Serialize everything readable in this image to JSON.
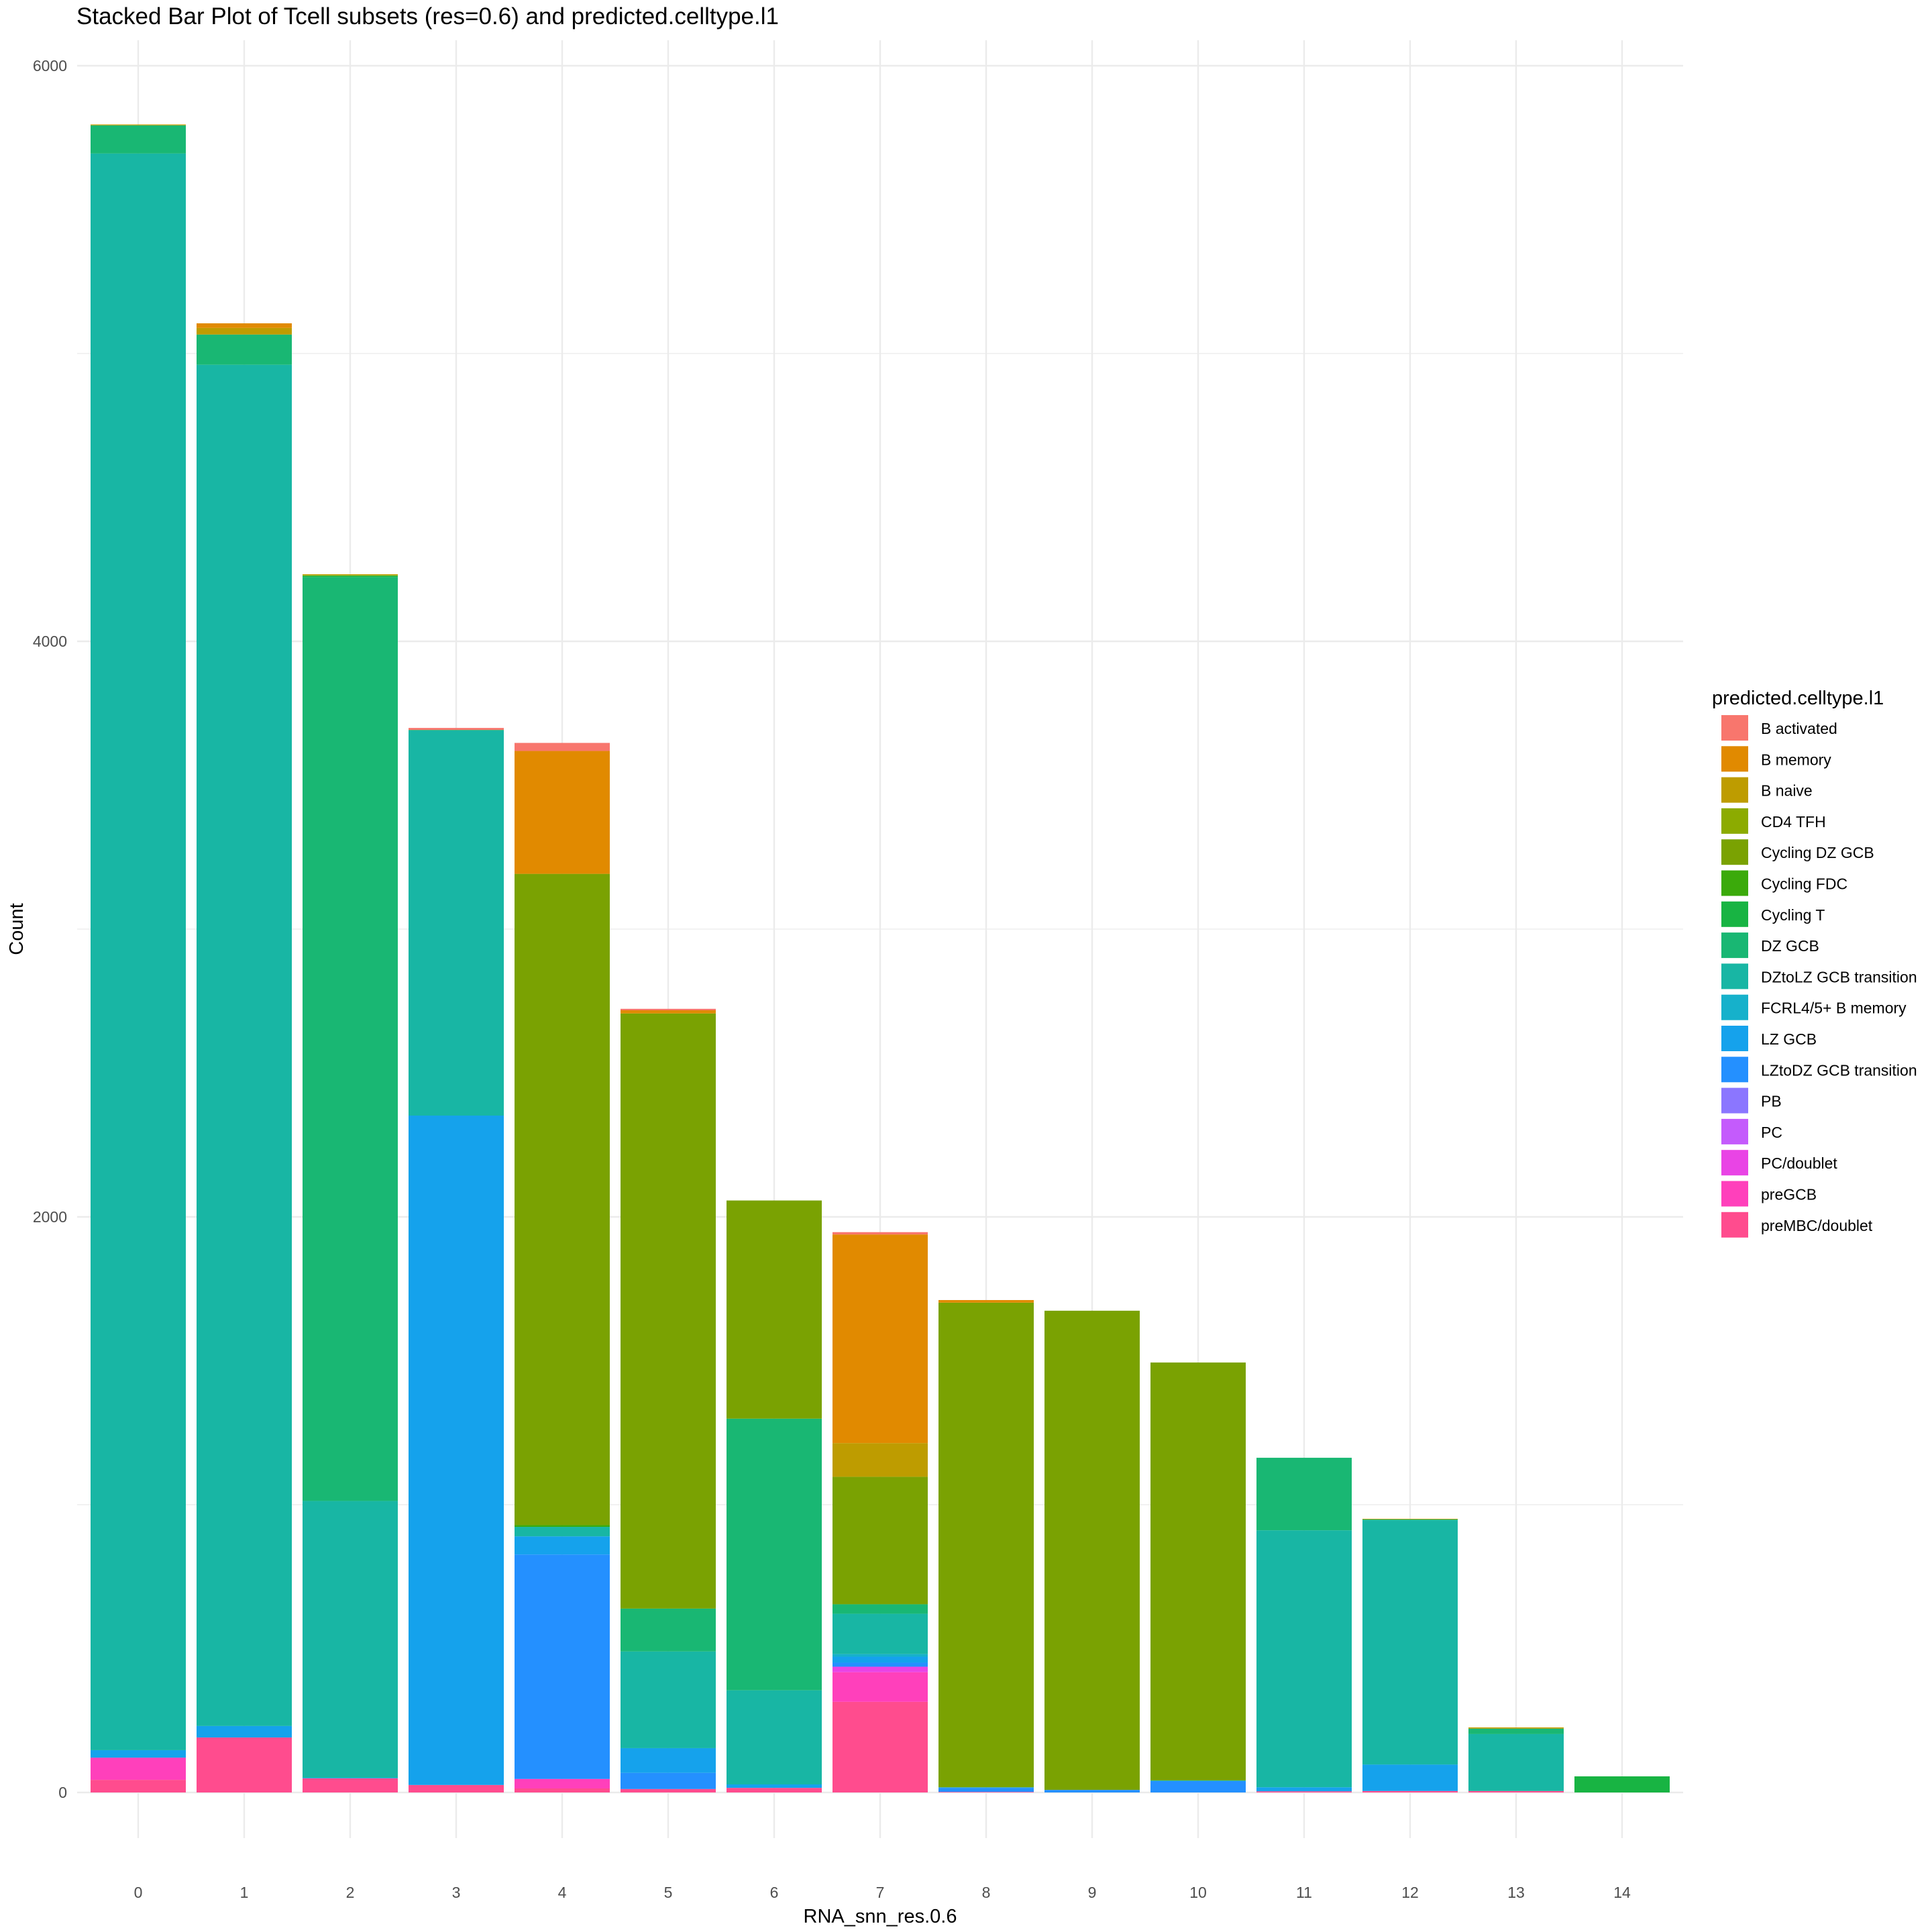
{
  "chart_data": {
    "type": "bar",
    "stacked": true,
    "title": "Stacked Bar Plot of Tcell subsets (res=0.6) and predicted.celltype.l1",
    "xlabel": "RNA_snn_res.0.6",
    "ylabel": "Count",
    "ylim": [
      0,
      6000
    ],
    "yticks": [
      "0",
      "2000",
      "4000",
      "6000"
    ],
    "grid": true,
    "legend_title": "predicted.celltype.l1",
    "legend_position": "right",
    "categories": [
      "0",
      "1",
      "2",
      "3",
      "4",
      "5",
      "6",
      "7",
      "8",
      "9",
      "10",
      "11",
      "12",
      "13",
      "14"
    ],
    "series": [
      {
        "name": "B activated",
        "color": "#F8766D",
        "values": [
          0,
          0,
          0,
          7,
          28,
          5,
          0,
          8,
          0,
          0,
          0,
          0,
          0,
          0,
          0
        ]
      },
      {
        "name": "B memory",
        "color": "#E18A00",
        "values": [
          0,
          16,
          0,
          0,
          427,
          11,
          0,
          725,
          9,
          0,
          0,
          0,
          0,
          0,
          0
        ]
      },
      {
        "name": "B naive",
        "color": "#BE9C00",
        "values": [
          3,
          23,
          3,
          0,
          0,
          0,
          0,
          117,
          0,
          0,
          0,
          0,
          2,
          4,
          0
        ]
      },
      {
        "name": "CD4 TFH",
        "color": "#8CAB00",
        "values": [
          0,
          0,
          2,
          0,
          0,
          0,
          0,
          0,
          0,
          0,
          0,
          0,
          0,
          0,
          0
        ]
      },
      {
        "name": "Cycling DZ GCB",
        "color": "#7AA202",
        "values": [
          0,
          0,
          0,
          0,
          2263,
          2068,
          758,
          443,
          1684,
          1665,
          1452,
          0,
          0,
          0,
          0
        ]
      },
      {
        "name": "Cycling FDC",
        "color": "#3BAA0B",
        "values": [
          0,
          0,
          0,
          0,
          6,
          0,
          0,
          0,
          0,
          0,
          0,
          0,
          0,
          0,
          0
        ]
      },
      {
        "name": "Cycling T",
        "color": "#18B443",
        "values": [
          0,
          0,
          5,
          0,
          0,
          0,
          0,
          0,
          0,
          0,
          0,
          0,
          0,
          0,
          56
        ]
      },
      {
        "name": "DZ GCB",
        "color": "#19B773",
        "values": [
          98,
          105,
          3210,
          2,
          0,
          149,
          944,
          33,
          0,
          0,
          0,
          252,
          3,
          19,
          0
        ]
      },
      {
        "name": "DZtoLZ GCB transition",
        "color": "#18B6A4",
        "values": [
          5548,
          4730,
          962,
          1338,
          33,
          336,
          327,
          140,
          0,
          0,
          2,
          893,
          849,
          198,
          0
        ]
      },
      {
        "name": "FCRL4/5+ B memory",
        "color": "#16B1CB",
        "values": [
          0,
          0,
          0,
          0,
          0,
          0,
          0,
          9,
          0,
          0,
          0,
          0,
          0,
          0,
          0
        ]
      },
      {
        "name": "LZ GCB",
        "color": "#15A2EC",
        "values": [
          26,
          40,
          2,
          2326,
          63,
          86,
          12,
          21,
          2,
          0,
          0,
          14,
          92,
          0,
          0
        ]
      },
      {
        "name": "LZtoDZ GCB transition",
        "color": "#2490FF",
        "values": [
          0,
          0,
          0,
          0,
          780,
          56,
          0,
          14,
          14,
          9,
          40,
          0,
          0,
          0,
          0
        ]
      },
      {
        "name": "PB",
        "color": "#8B76FF",
        "values": [
          0,
          0,
          0,
          0,
          0,
          0,
          0,
          0,
          0,
          0,
          0,
          0,
          0,
          0,
          0
        ]
      },
      {
        "name": "PC",
        "color": "#C45BFC",
        "values": [
          0,
          0,
          0,
          0,
          0,
          0,
          0,
          0,
          0,
          0,
          0,
          0,
          0,
          0,
          0
        ]
      },
      {
        "name": "PC/doublet",
        "color": "#E944E5",
        "values": [
          0,
          0,
          0,
          0,
          0,
          0,
          0,
          19,
          0,
          0,
          0,
          0,
          0,
          0,
          0
        ]
      },
      {
        "name": "preGCB",
        "color": "#FF40BB",
        "values": [
          77,
          0,
          0,
          0,
          33,
          0,
          0,
          103,
          0,
          0,
          0,
          0,
          0,
          0,
          0
        ]
      },
      {
        "name": "preMBC/doublet",
        "color": "#FF4C8E",
        "values": [
          44,
          191,
          49,
          26,
          14,
          12,
          16,
          315,
          2,
          0,
          0,
          4,
          5,
          5,
          0
        ]
      }
    ]
  }
}
